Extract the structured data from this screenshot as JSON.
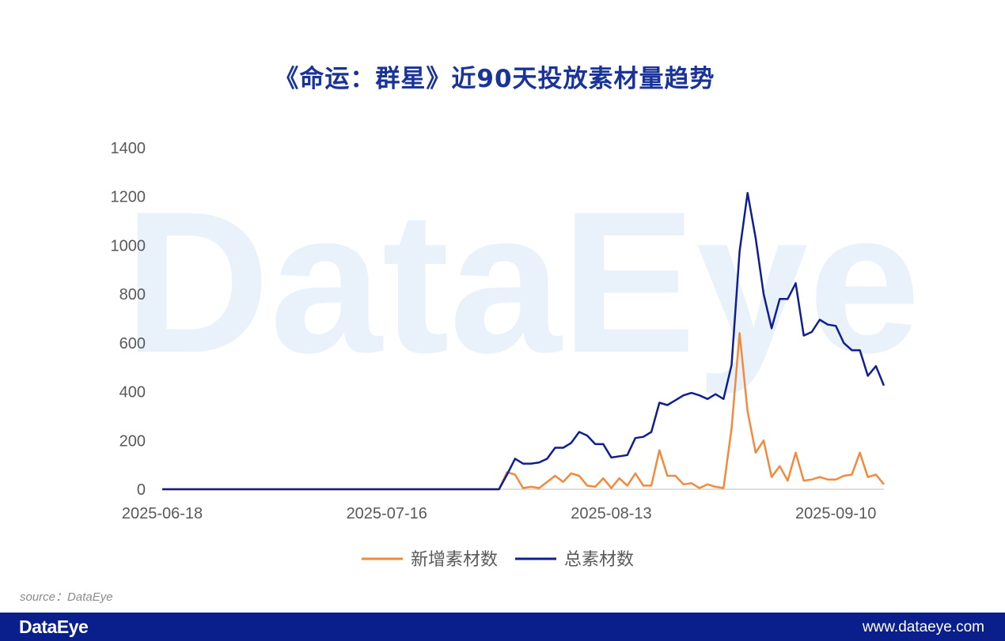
{
  "page": {
    "title": "《命运：群星》近90天投放素材量趋势",
    "source": "source：DataEye",
    "footer_logo": "DataEye",
    "footer_url": "www.dataeye.com",
    "watermark": "DataEye"
  },
  "colors": {
    "new_materials": "#f08a3c",
    "total_materials": "#0f1f8f",
    "title": "#1a3399",
    "footer": "#0a1e8c"
  },
  "chart_data": {
    "type": "line",
    "title": "《命运：群星》近90天投放素材量趋势",
    "ylim": [
      0,
      1400
    ],
    "yticks": [
      0,
      200,
      400,
      600,
      800,
      1000,
      1200,
      1400
    ],
    "x_tick_labels": [
      "2025-06-18",
      "2025-07-16",
      "2025-08-13",
      "2025-09-10"
    ],
    "x_tick_index": [
      0,
      28,
      56,
      84
    ],
    "legend_position": "bottom",
    "grid": false,
    "series": [
      {
        "name": "新增素材数",
        "values": [
          0,
          0,
          0,
          0,
          0,
          0,
          0,
          0,
          0,
          0,
          0,
          0,
          0,
          0,
          0,
          0,
          0,
          0,
          0,
          0,
          0,
          0,
          0,
          0,
          0,
          0,
          0,
          0,
          0,
          0,
          0,
          0,
          0,
          0,
          0,
          0,
          0,
          0,
          0,
          0,
          0,
          0,
          0,
          70,
          60,
          5,
          10,
          5,
          30,
          55,
          30,
          65,
          55,
          15,
          10,
          45,
          5,
          45,
          15,
          65,
          15,
          15,
          160,
          55,
          55,
          20,
          25,
          5,
          20,
          10,
          5,
          250,
          640,
          320,
          150,
          200,
          50,
          95,
          35,
          150,
          35,
          40,
          50,
          40,
          40,
          55,
          60,
          150,
          50,
          60,
          20
        ]
      },
      {
        "name": "总素材数",
        "values": [
          0,
          0,
          0,
          0,
          0,
          0,
          0,
          0,
          0,
          0,
          0,
          0,
          0,
          0,
          0,
          0,
          0,
          0,
          0,
          0,
          0,
          0,
          0,
          0,
          0,
          0,
          0,
          0,
          0,
          0,
          0,
          0,
          0,
          0,
          0,
          0,
          0,
          0,
          0,
          0,
          0,
          0,
          0,
          60,
          125,
          105,
          105,
          110,
          125,
          170,
          170,
          190,
          235,
          220,
          185,
          185,
          130,
          135,
          140,
          210,
          215,
          235,
          355,
          345,
          365,
          385,
          395,
          385,
          370,
          390,
          370,
          510,
          975,
          1215,
          1030,
          800,
          660,
          780,
          780,
          845,
          630,
          645,
          695,
          675,
          670,
          600,
          570,
          570,
          465,
          505,
          425
        ]
      }
    ]
  }
}
